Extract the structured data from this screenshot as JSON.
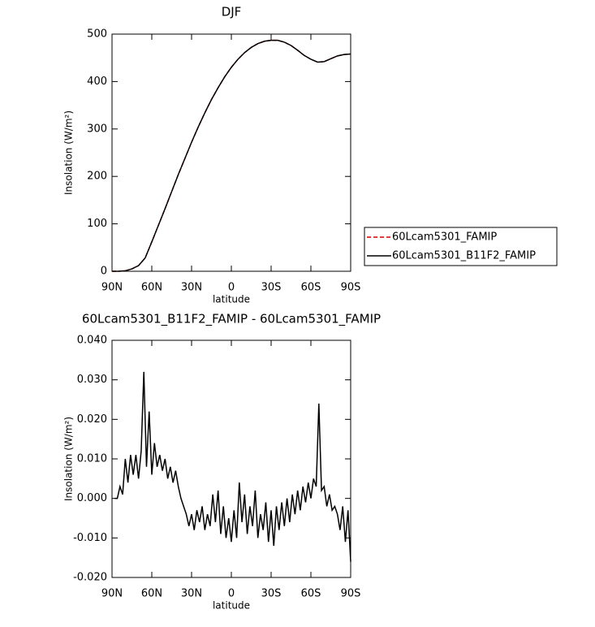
{
  "chart_data": [
    {
      "type": "line",
      "title": "DJF",
      "xlabel": "latitude",
      "ylabel": "Insolation (W/m²)",
      "x": [
        90,
        85,
        80,
        75,
        70,
        65,
        60,
        55,
        50,
        45,
        40,
        35,
        30,
        25,
        20,
        15,
        10,
        5,
        0,
        -5,
        -10,
        -15,
        -20,
        -25,
        -30,
        -35,
        -40,
        -45,
        -50,
        -55,
        -60,
        -65,
        -70,
        -75,
        -80,
        -85,
        -90
      ],
      "series": [
        {
          "name": "60Lcam5301_FAMIP",
          "color": "#cc0000",
          "dashed": true,
          "values": [
            0,
            0,
            1,
            5,
            12,
            28,
            62,
            97,
            132,
            168,
            204,
            238,
            272,
            304,
            334,
            362,
            387,
            410,
            430,
            447,
            461,
            472,
            480,
            485,
            487,
            487,
            483,
            476,
            466,
            455,
            447,
            441,
            442,
            448,
            454,
            457,
            458
          ]
        },
        {
          "name": "60Lcam5301_B11F2_FAMIP",
          "color": "#000000",
          "dashed": false,
          "values": [
            0,
            0,
            1,
            5,
            12,
            28,
            62,
            97,
            132,
            168,
            204,
            238,
            272,
            304,
            334,
            362,
            387,
            410,
            430,
            447,
            461,
            472,
            480,
            485,
            487,
            487,
            483,
            476,
            466,
            455,
            447,
            441,
            442,
            448,
            454,
            457,
            458
          ]
        }
      ],
      "xlim": [
        90,
        -90
      ],
      "xticks": [
        {
          "value": 90,
          "label": "90N"
        },
        {
          "value": 60,
          "label": "60N"
        },
        {
          "value": 30,
          "label": "30N"
        },
        0,
        {
          "value": -30,
          "label": "30S"
        },
        {
          "value": -60,
          "label": "60S"
        },
        {
          "value": -90,
          "label": "90S"
        }
      ],
      "ylim": [
        0,
        500
      ],
      "yticks": [
        0,
        100,
        200,
        300,
        400,
        500
      ],
      "legend": "right"
    },
    {
      "type": "line",
      "title": "60Lcam5301_B11F2_FAMIP - 60Lcam5301_FAMIP",
      "xlabel": "latitude",
      "ylabel": "Insolation (W/m²)",
      "x": [
        88,
        86,
        84,
        82,
        80,
        78,
        76,
        74,
        72,
        70,
        68,
        66,
        64,
        62,
        60,
        58,
        56,
        54,
        52,
        50,
        48,
        46,
        44,
        42,
        40,
        38,
        36,
        34,
        32,
        30,
        28,
        26,
        24,
        22,
        20,
        18,
        16,
        14,
        12,
        10,
        8,
        6,
        4,
        2,
        0,
        -2,
        -4,
        -6,
        -8,
        -10,
        -12,
        -14,
        -16,
        -18,
        -20,
        -22,
        -24,
        -26,
        -28,
        -30,
        -32,
        -34,
        -36,
        -38,
        -40,
        -42,
        -44,
        -46,
        -48,
        -50,
        -52,
        -54,
        -56,
        -58,
        -60,
        -62,
        -64,
        -66,
        -68,
        -70,
        -72,
        -74,
        -76,
        -78,
        -80,
        -82,
        -84,
        -86,
        -88,
        -90
      ],
      "series": [
        {
          "color": "#000000",
          "dashed": false,
          "values": [
            0.0,
            0.0,
            0.003,
            0.001,
            0.01,
            0.004,
            0.011,
            0.006,
            0.011,
            0.005,
            0.012,
            0.032,
            0.008,
            0.022,
            0.006,
            0.014,
            0.008,
            0.011,
            0.007,
            0.01,
            0.005,
            0.008,
            0.004,
            0.007,
            0.003,
            0.0,
            -0.002,
            -0.004,
            -0.007,
            -0.004,
            -0.008,
            -0.003,
            -0.006,
            -0.002,
            -0.008,
            -0.004,
            -0.007,
            0.001,
            -0.006,
            0.002,
            -0.009,
            -0.002,
            -0.01,
            -0.005,
            -0.011,
            -0.003,
            -0.01,
            0.004,
            -0.006,
            0.001,
            -0.009,
            -0.002,
            -0.007,
            0.002,
            -0.01,
            -0.004,
            -0.008,
            -0.001,
            -0.011,
            -0.003,
            -0.012,
            -0.002,
            -0.008,
            -0.001,
            -0.007,
            0.0,
            -0.006,
            0.001,
            -0.004,
            0.002,
            -0.003,
            0.003,
            -0.001,
            0.004,
            0.0,
            0.005,
            0.003,
            0.024,
            0.002,
            0.003,
            -0.002,
            0.001,
            -0.003,
            -0.002,
            -0.004,
            -0.008,
            -0.002,
            -0.011,
            -0.003,
            -0.016
          ]
        }
      ],
      "xlim": [
        90,
        -90
      ],
      "xticks": [
        {
          "value": 90,
          "label": "90N"
        },
        {
          "value": 60,
          "label": "60N"
        },
        {
          "value": 30,
          "label": "30N"
        },
        0,
        {
          "value": -30,
          "label": "30S"
        },
        {
          "value": -60,
          "label": "60S"
        },
        {
          "value": -90,
          "label": "90S"
        }
      ],
      "ylim": [
        -0.02,
        0.04
      ],
      "yticks": [
        {
          "value": -0.02,
          "label": "-0.020"
        },
        {
          "value": -0.01,
          "label": "-0.010"
        },
        {
          "value": 0,
          "label": "0.000"
        },
        {
          "value": 0.01,
          "label": "0.010"
        },
        {
          "value": 0.02,
          "label": "0.020"
        },
        {
          "value": 0.03,
          "label": "0.030"
        },
        {
          "value": 0.04,
          "label": "0.040"
        }
      ]
    }
  ]
}
